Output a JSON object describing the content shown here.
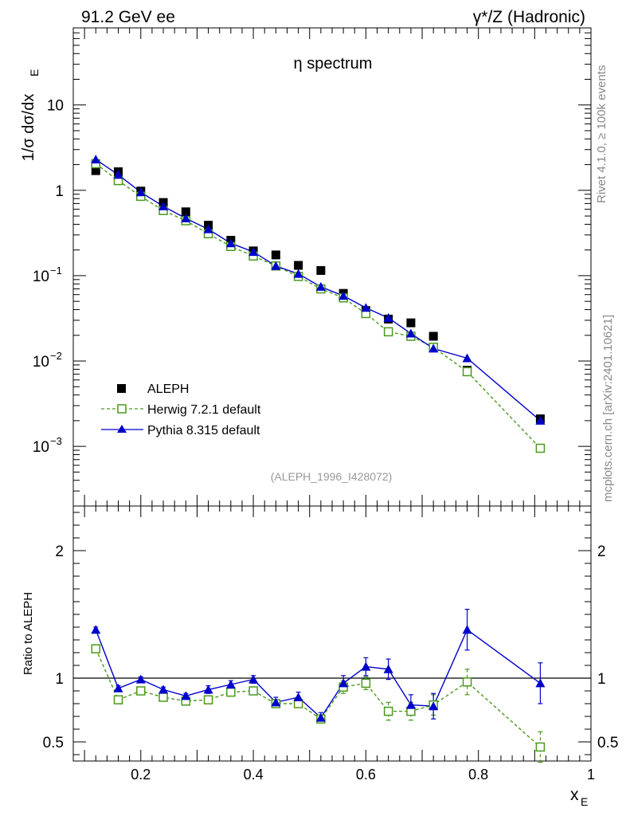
{
  "header": {
    "left": "91.2 GeV ee",
    "right": "γ*/Z (Hadronic)"
  },
  "side_text": {
    "rivet": "Rivet 4.1.0, ≥ 100k events",
    "mcplots": "mcplots.cern.ch [arXiv:2401.10621]"
  },
  "chart_data": [
    {
      "type": "scatter",
      "panel": "main",
      "title": "η spectrum",
      "ylabel_main": "1/σ  dσ/dx",
      "ylabel_sub": "E",
      "yscale": "log",
      "ylim": [
        0.0002,
        80
      ],
      "xlim": [
        0.08,
        1.0
      ],
      "analysis_tag": "(ALEPH_1996_I428072)",
      "yticks": [
        {
          "value": 0.001,
          "base": "10",
          "exp": "−3"
        },
        {
          "value": 0.01,
          "base": "10",
          "exp": "−2"
        },
        {
          "value": 0.1,
          "base": "10",
          "exp": "−1"
        },
        {
          "value": 1,
          "base": "1",
          "exp": ""
        },
        {
          "value": 10,
          "base": "10",
          "exp": ""
        }
      ],
      "series": [
        {
          "name": "ALEPH",
          "color": "#000000",
          "marker": "filled-square",
          "x": [
            0.12,
            0.16,
            0.2,
            0.24,
            0.28,
            0.32,
            0.36,
            0.4,
            0.44,
            0.48,
            0.52,
            0.56,
            0.6,
            0.64,
            0.68,
            0.72,
            0.78,
            0.91
          ],
          "y": [
            1.7,
            1.65,
            0.98,
            0.72,
            0.56,
            0.39,
            0.26,
            0.195,
            0.175,
            0.132,
            0.115,
            0.062,
            0.039,
            0.031,
            0.028,
            0.0195,
            0.0078,
            0.0021
          ]
        },
        {
          "name": "Herwig 7.2.1 default",
          "color": "#4a9a1a",
          "marker": "open-square",
          "line": "dashed",
          "x": [
            0.12,
            0.16,
            0.2,
            0.24,
            0.28,
            0.32,
            0.36,
            0.4,
            0.44,
            0.48,
            0.52,
            0.56,
            0.6,
            0.64,
            0.68,
            0.72,
            0.78,
            0.91
          ],
          "y": [
            2.05,
            1.3,
            0.85,
            0.58,
            0.44,
            0.31,
            0.22,
            0.17,
            0.13,
            0.098,
            0.07,
            0.055,
            0.036,
            0.022,
            0.0195,
            0.0145,
            0.0075,
            0.00095
          ]
        },
        {
          "name": "Pythia 8.315 default",
          "color": "#0000cc",
          "marker": "filled-triangle",
          "line": "solid",
          "x": [
            0.12,
            0.16,
            0.2,
            0.24,
            0.28,
            0.32,
            0.36,
            0.4,
            0.44,
            0.48,
            0.52,
            0.56,
            0.6,
            0.64,
            0.68,
            0.72,
            0.78,
            0.91
          ],
          "y": [
            2.3,
            1.52,
            0.95,
            0.65,
            0.47,
            0.35,
            0.24,
            0.19,
            0.13,
            0.105,
            0.074,
            0.058,
            0.042,
            0.032,
            0.021,
            0.014,
            0.0108,
            0.002
          ]
        }
      ]
    },
    {
      "type": "scatter",
      "panel": "ratio",
      "ylabel": "Ratio to ALEPH",
      "xlabel_main": "x",
      "xlabel_sub": "E",
      "ylim": [
        0.35,
        2.35
      ],
      "xlim": [
        0.08,
        1.0
      ],
      "xticks": [
        "0.2",
        "0.4",
        "0.6",
        "0.8",
        "1"
      ],
      "yticks": [
        "0.5",
        "1",
        "2"
      ],
      "reference_line": 1,
      "series": [
        {
          "name": "Herwig 7.2.1 default",
          "color": "#4a9a1a",
          "x": [
            0.12,
            0.16,
            0.2,
            0.24,
            0.28,
            0.32,
            0.36,
            0.4,
            0.44,
            0.48,
            0.52,
            0.56,
            0.6,
            0.64,
            0.68,
            0.72,
            0.78,
            0.91
          ],
          "y": [
            1.23,
            0.83,
            0.9,
            0.85,
            0.82,
            0.83,
            0.89,
            0.9,
            0.8,
            0.8,
            0.68,
            0.93,
            0.96,
            0.74,
            0.74,
            0.79,
            0.97,
            0.46
          ],
          "err": [
            0.02,
            0.02,
            0.02,
            0.02,
            0.02,
            0.02,
            0.02,
            0.02,
            0.03,
            0.03,
            0.03,
            0.05,
            0.05,
            0.07,
            0.07,
            0.08,
            0.1,
            0.12
          ]
        },
        {
          "name": "Pythia 8.315 default",
          "color": "#0000cc",
          "x": [
            0.12,
            0.16,
            0.2,
            0.24,
            0.28,
            0.32,
            0.36,
            0.4,
            0.44,
            0.48,
            0.52,
            0.56,
            0.6,
            0.64,
            0.68,
            0.72,
            0.78,
            0.91
          ],
          "y": [
            1.38,
            0.92,
            0.99,
            0.91,
            0.86,
            0.91,
            0.95,
            0.99,
            0.81,
            0.85,
            0.69,
            0.96,
            1.09,
            1.07,
            0.79,
            0.78,
            1.38,
            0.96
          ],
          "err": [
            0.02,
            0.02,
            0.02,
            0.02,
            0.02,
            0.03,
            0.03,
            0.03,
            0.04,
            0.04,
            0.04,
            0.06,
            0.07,
            0.08,
            0.08,
            0.1,
            0.16,
            0.16
          ]
        }
      ]
    }
  ]
}
